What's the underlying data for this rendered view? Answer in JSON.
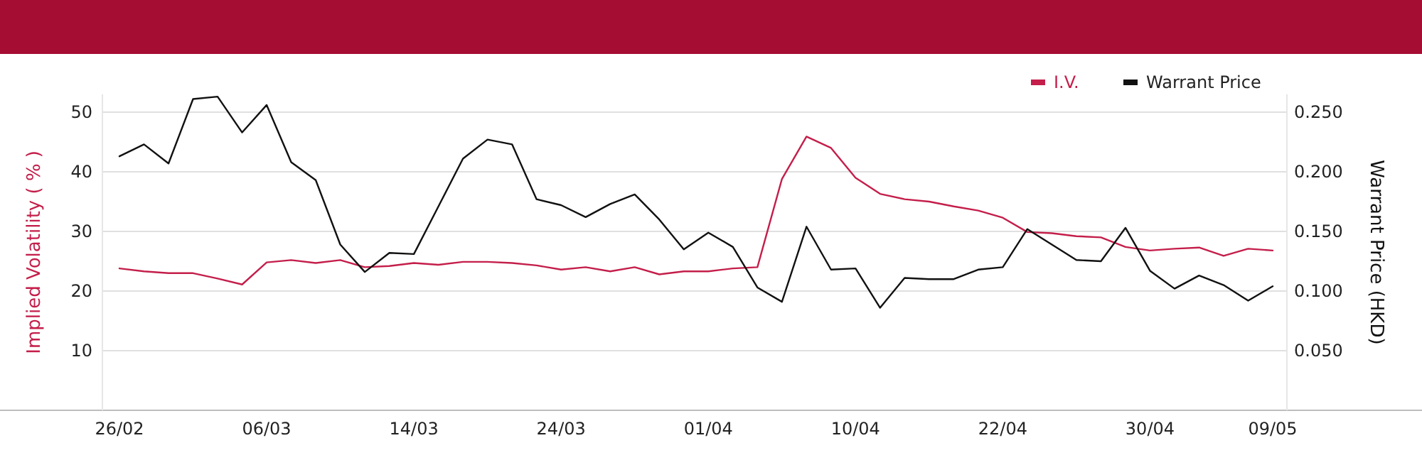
{
  "chart_data": {
    "type": "line",
    "ylabel": "Implied Volatility ( % )",
    "y2label": "Warrant Price (HKD)",
    "categories": [
      "26/02",
      null,
      null,
      null,
      null,
      null,
      "06/03",
      null,
      null,
      null,
      null,
      null,
      "14/03",
      null,
      null,
      null,
      null,
      null,
      "24/03",
      null,
      null,
      null,
      null,
      null,
      "01/04",
      null,
      null,
      null,
      null,
      null,
      "10/04",
      null,
      null,
      null,
      null,
      null,
      "22/04",
      null,
      null,
      null,
      null,
      null,
      "30/04",
      null,
      null,
      null,
      null,
      "09/05"
    ],
    "series": [
      {
        "name": "I.V.",
        "color": "#c41e4a",
        "values": [
          23.8,
          23.3,
          23.0,
          23.0,
          22.1,
          21.1,
          24.8,
          25.2,
          24.7,
          25.2,
          24.0,
          24.2,
          24.7,
          24.4,
          24.9,
          24.9,
          24.7,
          24.3,
          23.6,
          24.0,
          23.3,
          24.0,
          22.8,
          23.3,
          23.3,
          23.8,
          24.0,
          38.8,
          45.9,
          44.0,
          39.0,
          36.3,
          35.4,
          35.0,
          34.2,
          33.5,
          32.3,
          29.9,
          29.7,
          29.2,
          29.0,
          27.4,
          26.8,
          27.1,
          27.3,
          25.9,
          27.1,
          26.8
        ]
      },
      {
        "name": "Warrant Price",
        "color": "#111111",
        "axis": "y2",
        "values": [
          0.213,
          0.223,
          0.207,
          0.261,
          0.263,
          0.233,
          0.256,
          0.208,
          0.193,
          0.139,
          0.116,
          0.132,
          0.131,
          0.171,
          0.211,
          0.227,
          0.223,
          0.177,
          0.172,
          0.162,
          0.173,
          0.181,
          0.16,
          0.135,
          0.149,
          0.137,
          0.103,
          0.091,
          0.154,
          0.118,
          0.119,
          0.086,
          0.111,
          0.11,
          0.11,
          0.118,
          0.12,
          0.152,
          0.139,
          0.126,
          0.125,
          0.153,
          0.117,
          0.102,
          0.113,
          0.105,
          0.092,
          0.104
        ]
      }
    ],
    "ylim": [
      0,
      53
    ],
    "yticks": [
      10,
      20,
      30,
      40,
      50
    ],
    "y2lim": [
      0,
      0.265
    ],
    "y2ticks": [
      {
        "value": 0.05,
        "label": "0.050"
      },
      {
        "value": 0.1,
        "label": "0.100"
      },
      {
        "value": 0.15,
        "label": "0.150"
      },
      {
        "value": 0.2,
        "label": "0.200"
      },
      {
        "value": 0.25,
        "label": "0.250"
      }
    ],
    "grid": "y",
    "legend": "top right",
    "marker": "none",
    "line_style": "solid"
  }
}
